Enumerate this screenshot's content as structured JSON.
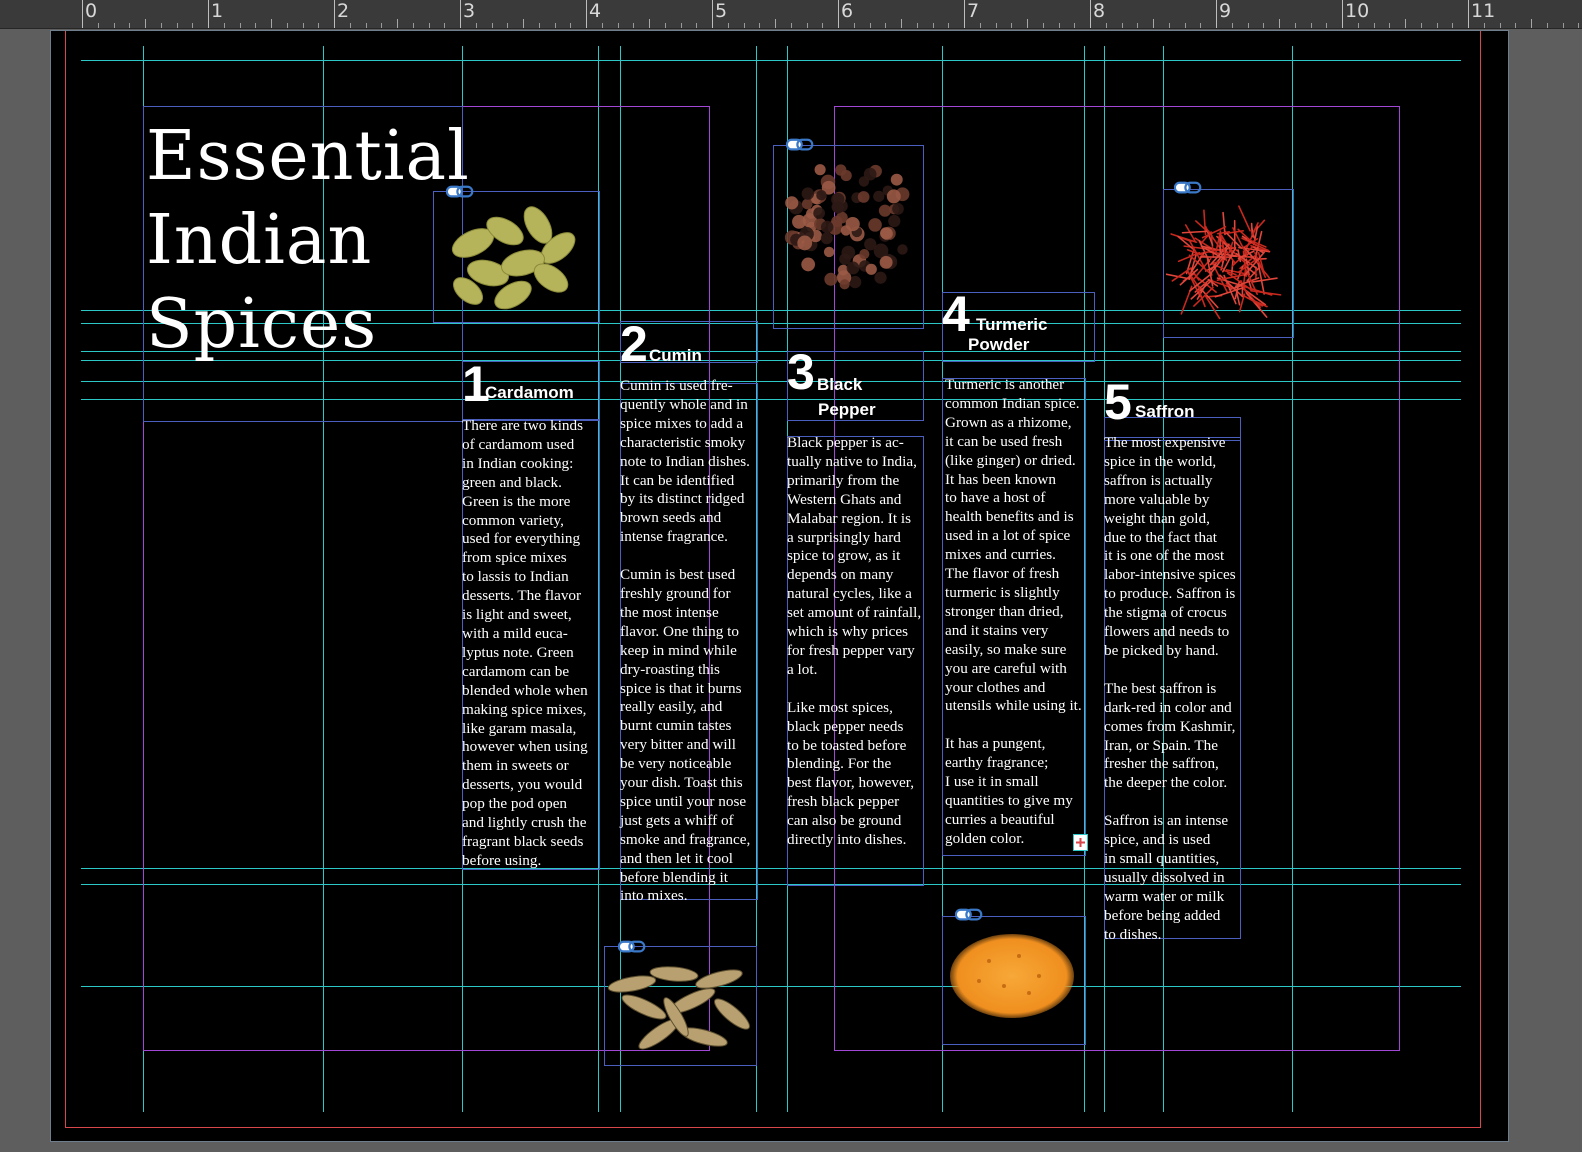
{
  "ruler": {
    "numbers": [
      "0",
      "1",
      "2",
      "3",
      "4",
      "5",
      "6",
      "7",
      "8",
      "9",
      "10",
      "11"
    ]
  },
  "title": {
    "line1": "Essential",
    "line2": "Indian",
    "line3": "Spices"
  },
  "spices": [
    {
      "number": "1",
      "name": "Cardamom",
      "paragraphs": "There are two kinds\nof cardamom used\nin Indian cooking:\ngreen and black.\nGreen is the more\ncommon variety,\nused for everything\nfrom spice mixes\nto lassis to Indian\ndesserts. The flavor\nis light and sweet,\nwith a mild euca-\nlyptus note. Green\ncardamom can be\nblended whole when\nmaking spice mixes,\nlike garam masala,\nhowever when using\nthem in sweets or\ndesserts, you would\npop the pod open\nand lightly crush the\nfragrant black seeds\nbefore using."
    },
    {
      "number": "2",
      "name": "Cumin",
      "paragraphs": "Cumin is used fre-\nquently whole and in\nspice mixes to add a\ncharacteristic smoky\nnote to Indian dishes.\nIt can be identified\nby its distinct ridged\nbrown seeds and\nintense fragrance.\n\nCumin is best used\nfreshly ground for\nthe most intense\nflavor. One thing to\nkeep in mind while\ndry-roasting this\nspice is that it burns\nreally easily, and\nburnt cumin tastes\nvery bitter and will\nbe very noticeable\nyour dish. Toast this\nspice until your nose\njust gets a whiff of\nsmoke and fragrance,\nand then let it cool\nbefore blending it\ninto mixes."
    },
    {
      "number": "3",
      "name_line1": "Black",
      "name_line2": "Pepper",
      "paragraphs": "Black pepper is ac-\ntually native to India,\nprimarily from the\nWestern Ghats and\nMalabar region. It is\na surprisingly hard\nspice to grow, as it\ndepends on many\nnatural cycles, like a\nset amount of rainfall,\nwhich is why prices\nfor fresh pepper vary\na lot.\n\nLike most spices,\nblack pepper needs\nto be toasted before\nblending. For the\nbest flavor, however,\nfresh black pepper\ncan also be ground\ndirectly into dishes."
    },
    {
      "number": "4",
      "name_line1": "Turmeric",
      "name_line2": "Powder",
      "paragraphs": "Turmeric is another\ncommon Indian spice.\nGrown as a rhizome,\nit can be used fresh\n(like ginger) or dried.\nIt has been known\nto have a host of\nhealth benefits and is\nused in a lot of spice\nmixes and curries.\nThe flavor of fresh\nturmeric is slightly\nstronger than dried,\nand it stains very\neasily, so make sure\nyou are careful with\nyour clothes and\nutensils while using it.\n\nIt has a pungent,\nearthy fragrance;\nI use it in small\nquantities to give my\ncurries a beautiful\ngolden color."
    },
    {
      "number": "5",
      "name": "Saffron",
      "paragraphs": "The most expensive\nspice in the world,\nsaffron is actually\nmore valuable by\nweight than gold,\ndue to the fact that\nit is one of the most\nlabor-intensive spices\nto produce. Saffron is\nthe stigma of crocus\nflowers and needs to\nbe picked by hand.\n\nThe best saffron is\ndark-red in color and\ncomes from Kashmir,\nIran, or Spain. The\nfresher the saffron,\nthe deeper the color.\n\nSaffron is an intense\nspice, and is used\nin small quantities,\nusually dissolved in\nwarm water or milk\nbefore being added\nto dishes."
    }
  ],
  "icons": {
    "link": "link-chain-icon",
    "overset": "overset-text-icon"
  },
  "colors": {
    "page": "#000000",
    "guide": "#2cc8c8",
    "frame": "#4a5fbe",
    "margin": "#a246d6",
    "bleed": "#d9464b",
    "cardamom": "#b8b65a",
    "pepper": "#8a4a3a",
    "saffron": "#c8281e",
    "turmeric": "#f09a2a",
    "cumin": "#b8a070"
  }
}
